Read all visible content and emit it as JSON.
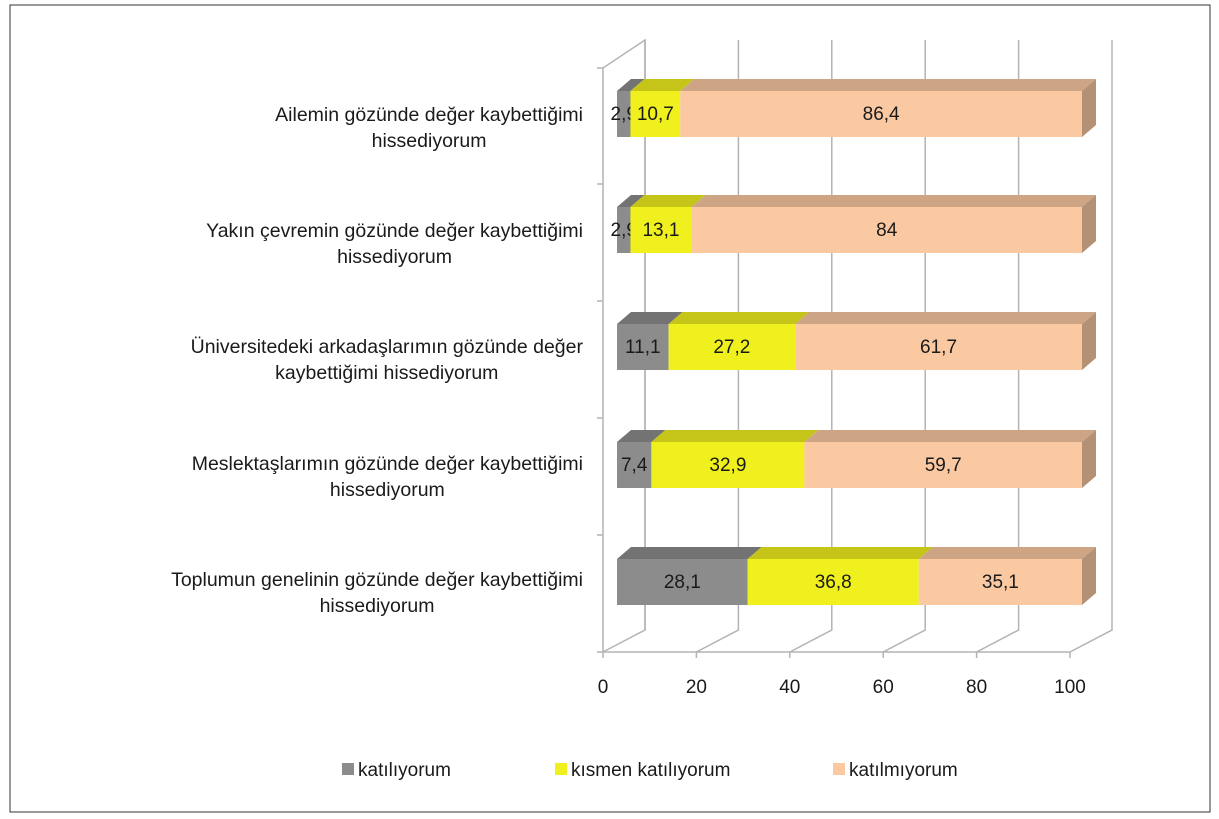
{
  "chart_data": {
    "type": "bar3d_stacked_horizontal",
    "categories": [
      "Ailemin gözünde değer kaybettiğimi\nhissediyorum",
      "Yakın çevremin gözünde değer kaybettiğimi\nhissediyorum",
      "Üniversitedeki arkadaşlarımın gözünde değer\nkaybettiğimi hissediyorum",
      "Meslektaşlarımın gözünde değer kaybettiğimi\nhissediyorum",
      "Toplumun genelinin gözünde değer kaybettiğimi\nhissediyorum"
    ],
    "series": [
      {
        "name": "katılıyorum",
        "color": "#8c8c8c",
        "values": [
          2.9,
          2.9,
          11.1,
          7.4,
          28.1
        ],
        "value_labels": [
          "2,9",
          "2,9",
          "11,1",
          "7,4",
          "28,1"
        ]
      },
      {
        "name": "kısmen katılıyorum",
        "color": "#f0f01e",
        "values": [
          10.7,
          13.1,
          27.2,
          32.9,
          36.8
        ],
        "value_labels": [
          "10,7",
          "13,1",
          "27,2",
          "32,9",
          "36,8"
        ]
      },
      {
        "name": "katılmıyorum",
        "color": "#fac9a2",
        "values": [
          86.4,
          84,
          61.7,
          59.7,
          35.1
        ],
        "value_labels": [
          "86,4",
          "84",
          "61,7",
          "59,7",
          "35,1"
        ]
      }
    ],
    "xlim": [
      0,
      100
    ],
    "xticks": [
      0,
      20,
      40,
      60,
      80,
      100
    ],
    "grid": true,
    "legend": "bottom"
  }
}
